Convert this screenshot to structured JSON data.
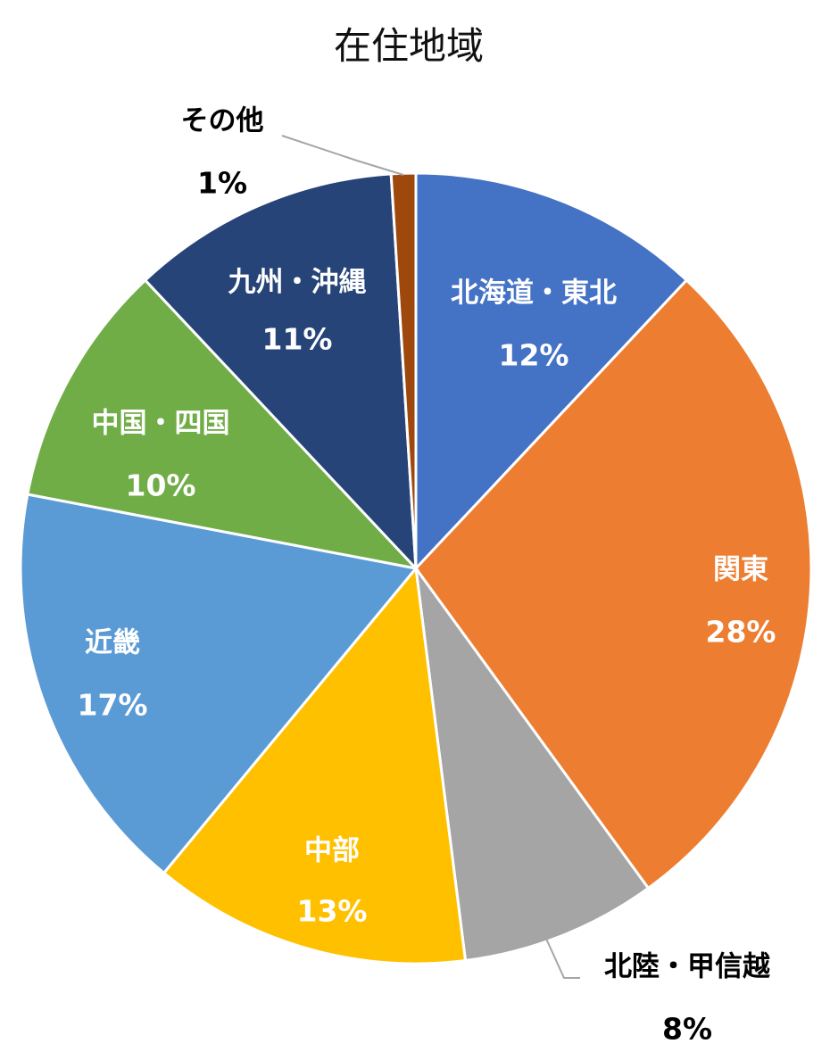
{
  "chart_data": {
    "type": "pie",
    "title": "在住地域",
    "categories": [
      "北海道・東北",
      "関東",
      "北陸・甲信越",
      "中部",
      "近畿",
      "中国・四国",
      "九州・沖縄",
      "その他"
    ],
    "values": [
      12,
      28,
      8,
      13,
      17,
      10,
      11,
      1
    ],
    "value_labels": [
      "12%",
      "28%",
      "8%",
      "13%",
      "17%",
      "10%",
      "11%",
      "1%"
    ],
    "colors": [
      "#4472C4",
      "#ED7D31",
      "#A5A5A5",
      "#FFC000",
      "#5B9BD5",
      "#70AD47",
      "#264478",
      "#9E480E"
    ],
    "label_colors": [
      "#ffffff",
      "#ffffff",
      "#000000",
      "#ffffff",
      "#ffffff",
      "#ffffff",
      "#ffffff",
      "#000000"
    ],
    "start_angle_deg": 0,
    "direction": "clockwise",
    "legend": "none"
  }
}
